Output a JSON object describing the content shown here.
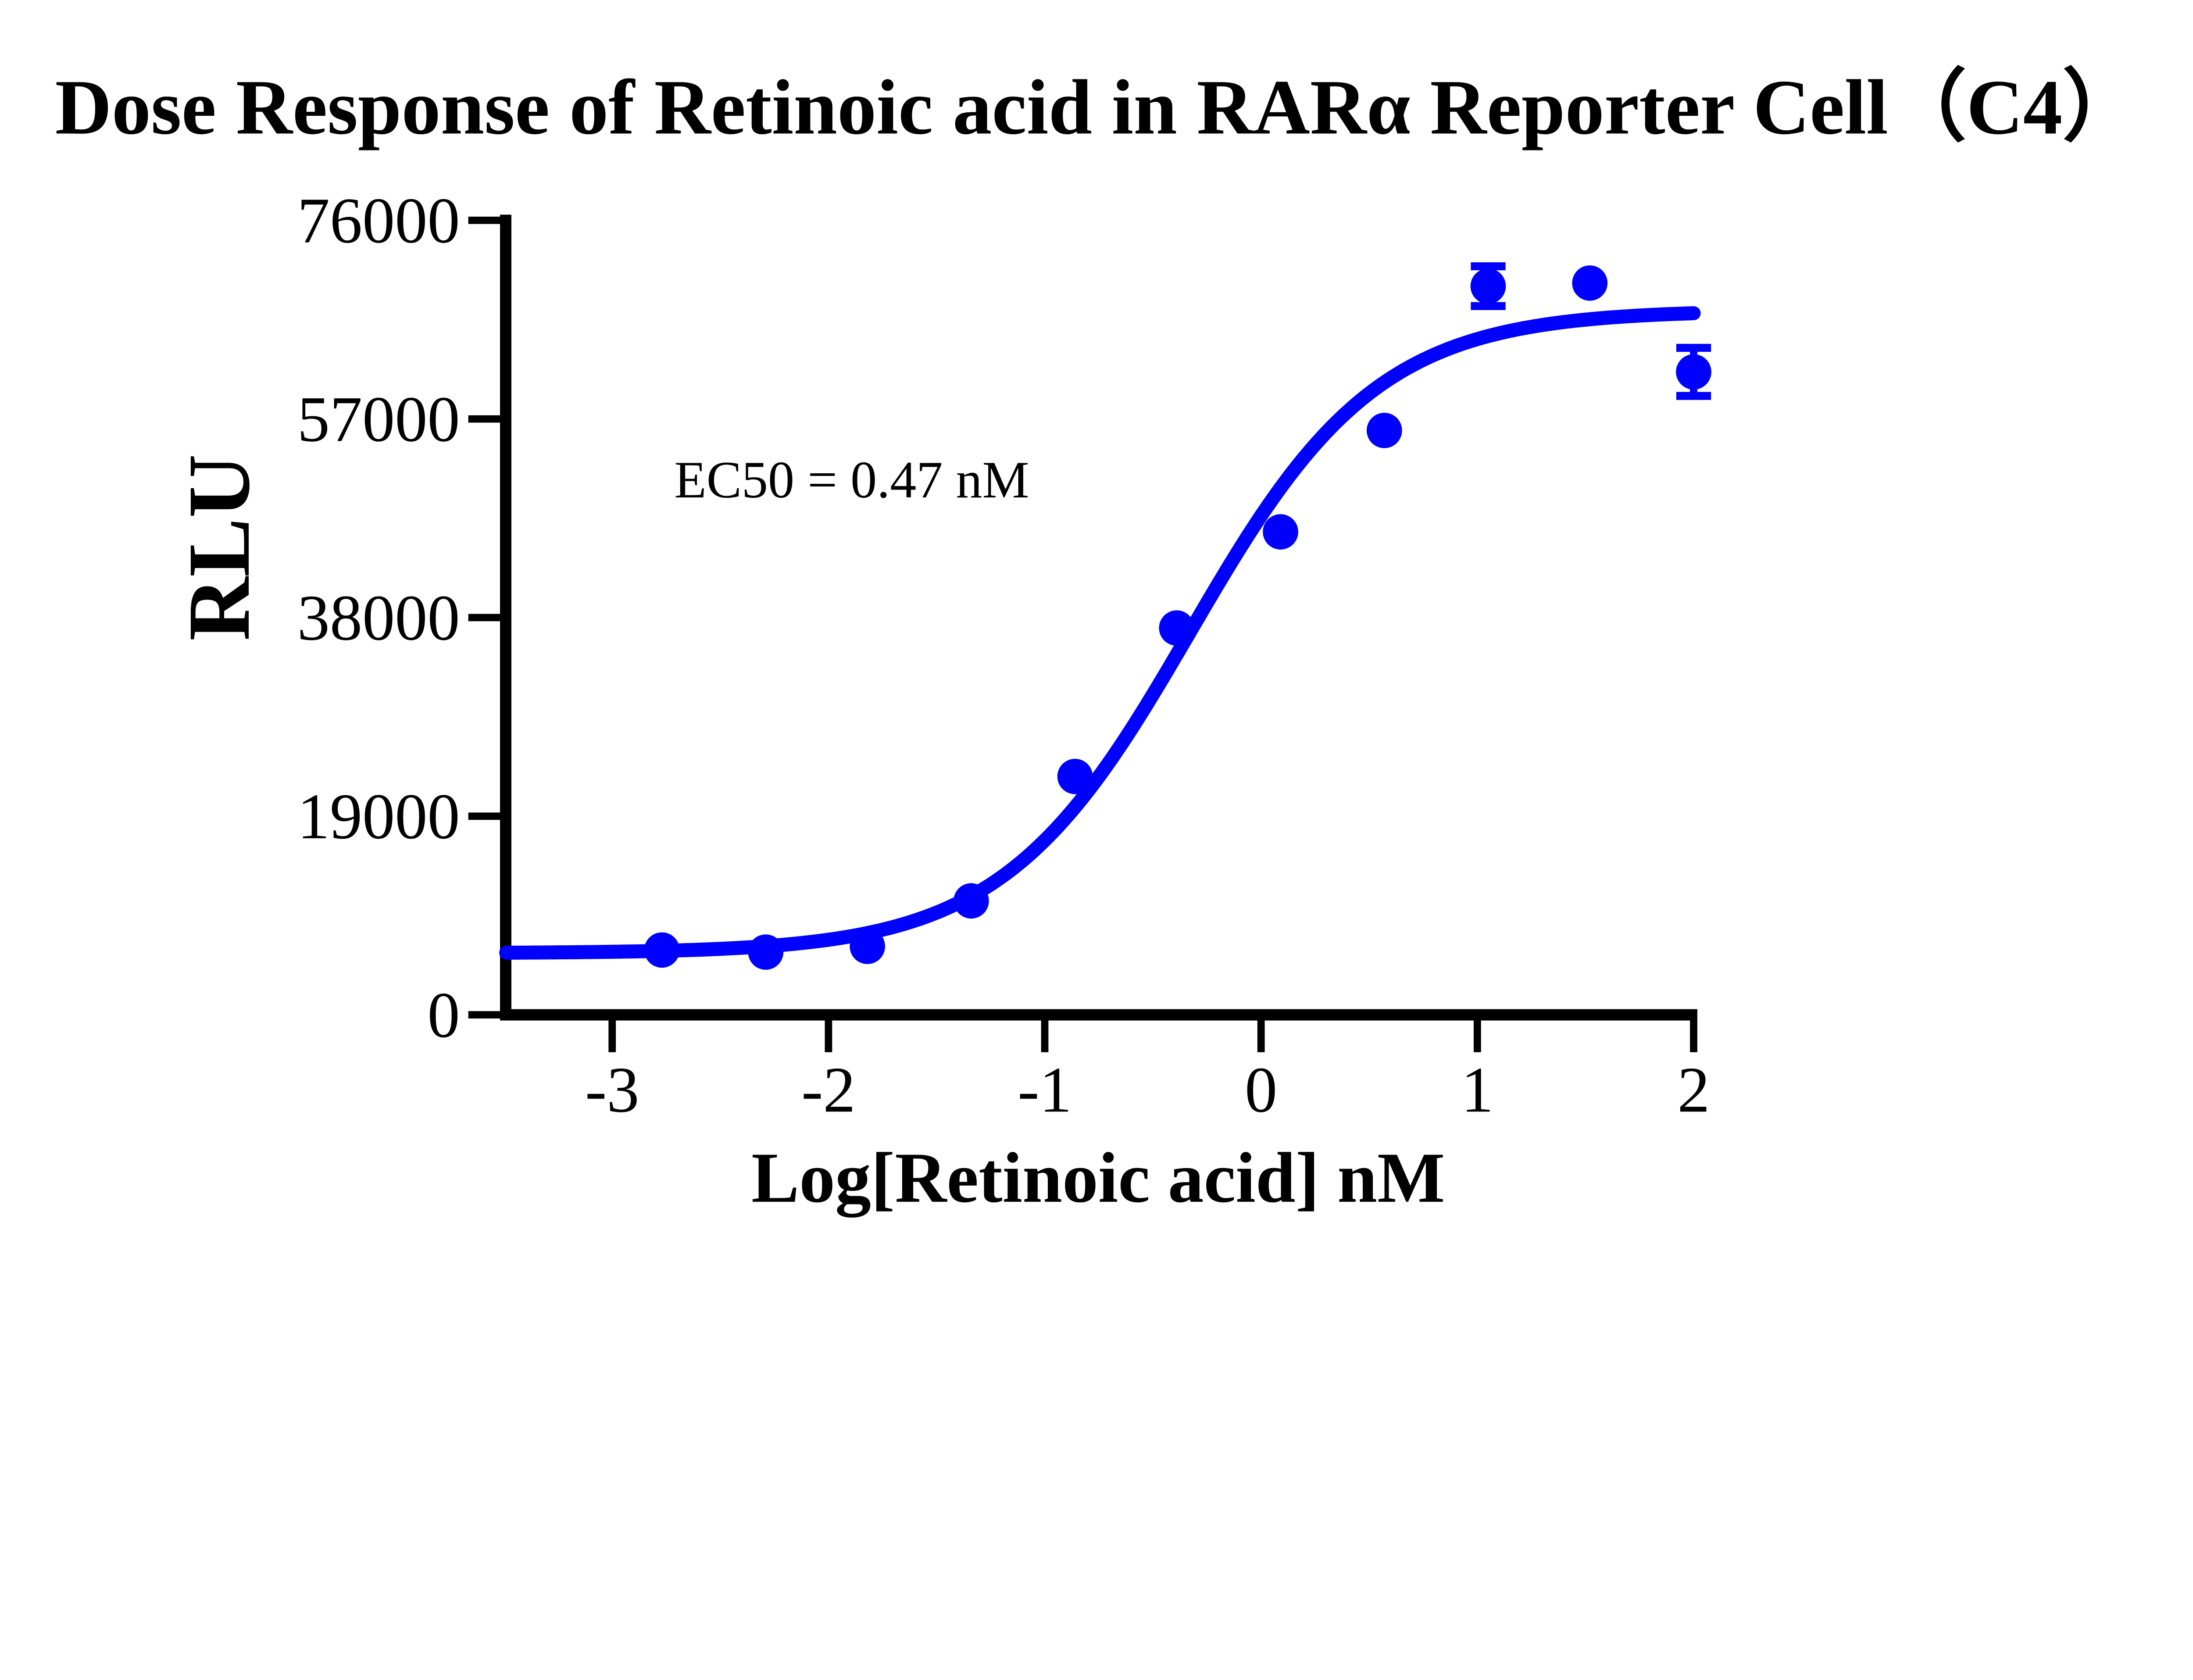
{
  "page": {
    "background_color": "#FFFFFF",
    "text_color": "#000000"
  },
  "chart_data": {
    "type": "scatter",
    "title": "Dose Response of Retinoic acid in RARα Reporter Cell（C4）",
    "xlabel": "Log[Retinoic acid] nM",
    "ylabel": "RLU",
    "annotation": "EC50 = 0.47 nM",
    "ec50_nM": 0.47,
    "x_ticks": [
      -3,
      -2,
      -1,
      0,
      1,
      2
    ],
    "y_ticks": [
      0,
      19000,
      38000,
      57000,
      76000
    ],
    "xlim": [
      -3.49,
      2.05
    ],
    "ylim": [
      0,
      76000
    ],
    "grid": false,
    "legend": "none",
    "axis_color": "#000000",
    "series": [
      {
        "name": "Retinoic acid",
        "color": "#0000FF",
        "marker": "circle",
        "points": [
          {
            "x": -2.77,
            "y": 6200,
            "sem": 0
          },
          {
            "x": -2.29,
            "y": 6000,
            "sem": 0
          },
          {
            "x": -1.82,
            "y": 6550,
            "sem": 0
          },
          {
            "x": -1.34,
            "y": 10900,
            "sem": 0
          },
          {
            "x": -0.86,
            "y": 22800,
            "sem": 0
          },
          {
            "x": -0.39,
            "y": 37000,
            "sem": 0
          },
          {
            "x": 0.09,
            "y": 46200,
            "sem": 0
          },
          {
            "x": 0.57,
            "y": 55900,
            "sem": 0
          },
          {
            "x": 1.05,
            "y": 69700,
            "sem": 1900
          },
          {
            "x": 1.52,
            "y": 70000,
            "sem": 0
          },
          {
            "x": 2.0,
            "y": 61500,
            "sem": 2300
          }
        ]
      }
    ],
    "fit": {
      "model": "sigmoidal_dose_response",
      "bottom": 5900,
      "top": 67400,
      "log_ec50": -0.328,
      "hill": 1.0,
      "x_range": [
        -3.49,
        2.0
      ]
    }
  }
}
